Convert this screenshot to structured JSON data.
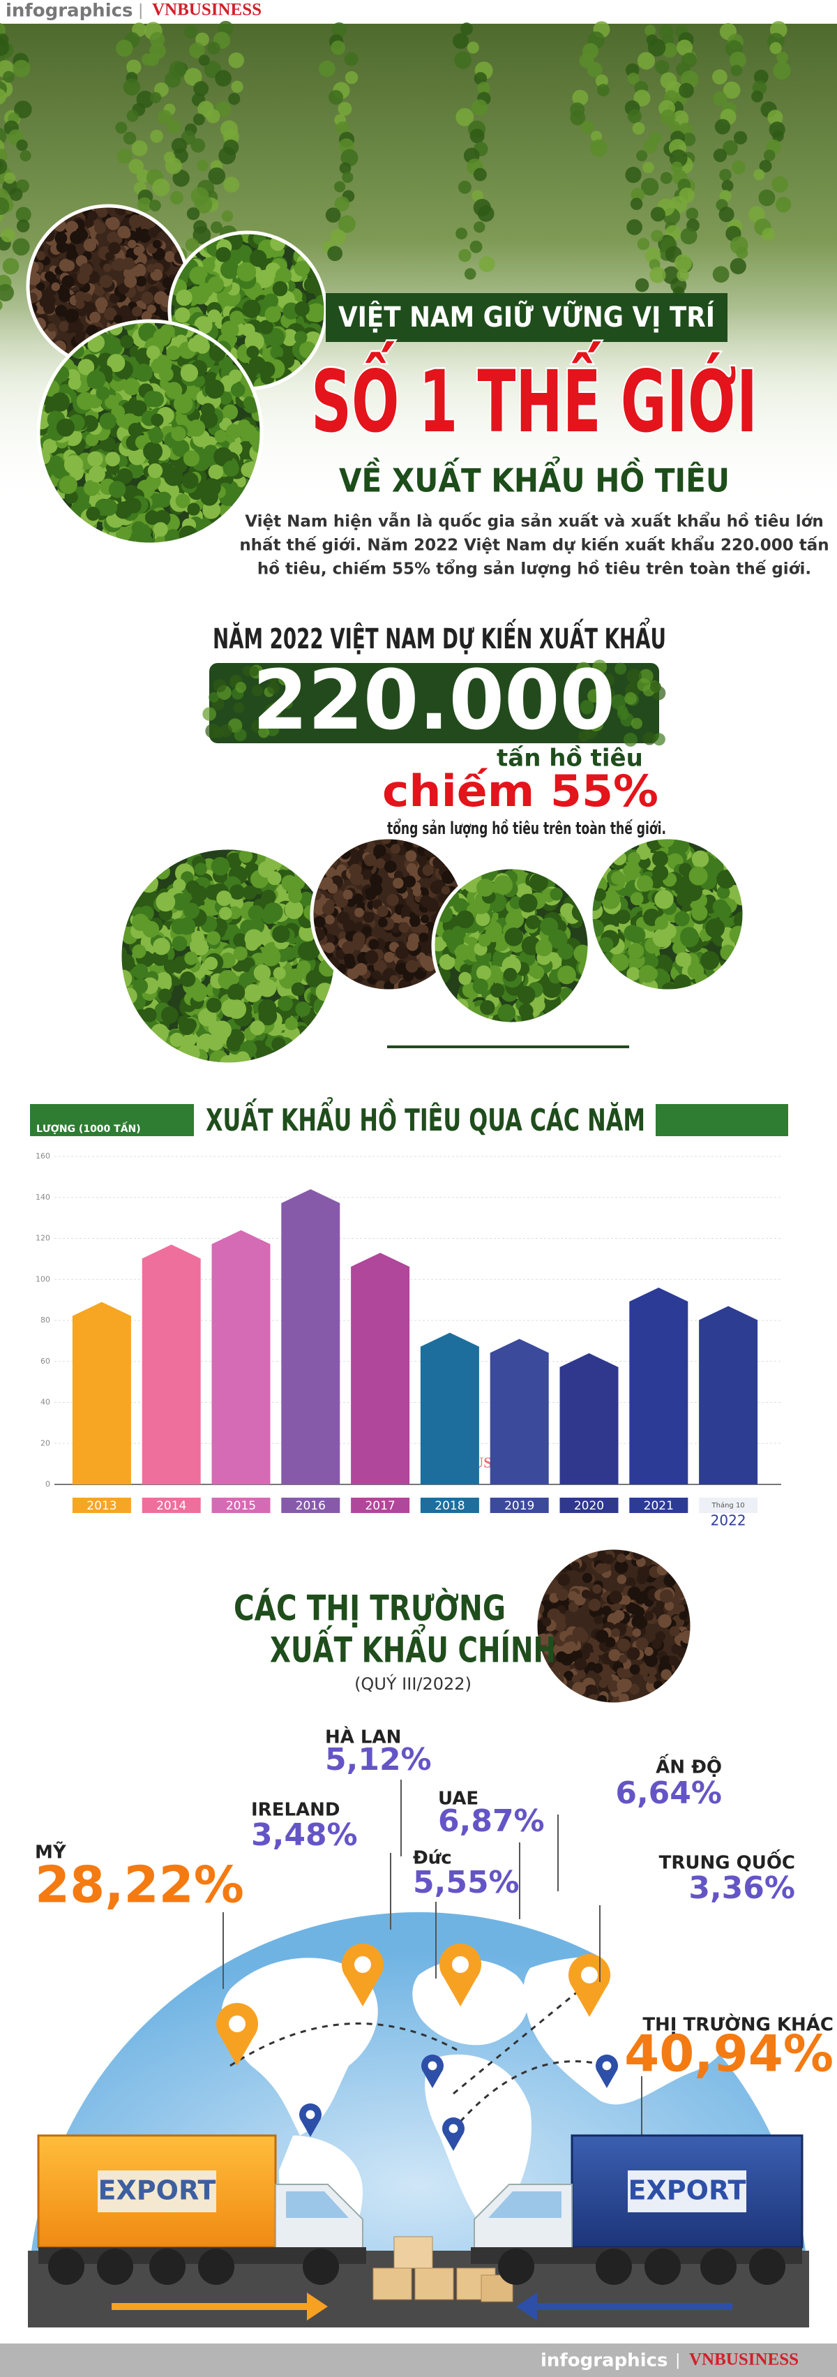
{
  "header": {
    "brand": "infographics",
    "separator": "|",
    "publisher": "VNBUSINESS"
  },
  "hero": {
    "line1": "VIỆT NAM GIỮ VỮNG VỊ TRÍ",
    "line2": "SỐ 1 THẾ GIỚI",
    "line3": "VỀ XUẤT KHẨU HỒ TIÊU",
    "intro": [
      "Việt Nam hiện vẫn là quốc gia sản xuất và xuất khẩu hồ tiêu lớn",
      "nhất thế giới. Năm 2022 Việt Nam dự kiến xuất khẩu 220.000 tấn",
      "hồ tiêu, chiếm 55% tổng sản lượng hồ tiêu trên toàn thế giới."
    ]
  },
  "highlight": {
    "lead": "NĂM 2022 VIỆT NAM DỰ KIẾN XUẤT KHẨU",
    "amount": "220.000",
    "unit": "tấn hồ tiêu",
    "share": "chiếm 55%",
    "note": "tổng sản lượng hồ tiêu trên toàn thế giới."
  },
  "chart_data": {
    "type": "bar",
    "title": "XUẤT KHẨU HỒ TIÊU QUA CÁC NĂM",
    "y_label": "LƯỢNG (1000 TẤN)",
    "watermark": "VNBUSINESS",
    "categories": [
      "2013",
      "2014",
      "2015",
      "2016",
      "2017",
      "2018",
      "2019",
      "2020",
      "2021",
      "2022"
    ],
    "last_category_note": "Tháng 10",
    "values": [
      89,
      117,
      124,
      144,
      113,
      74,
      71,
      64,
      96,
      87
    ],
    "colors": [
      "#f6a623",
      "#ee6f9c",
      "#d46bb4",
      "#875aa9",
      "#b0479a",
      "#1d6e9c",
      "#3b4a9b",
      "#2f388d",
      "#2c3b96",
      "#2d3d92"
    ],
    "ylim": [
      0,
      160
    ],
    "yticks": [
      0,
      20,
      40,
      60,
      80,
      100,
      120,
      140,
      160
    ],
    "grid": true
  },
  "markets": {
    "title1": "CÁC THỊ TRƯỜNG",
    "title2": "XUẤT KHẨU CHÍNH",
    "period": "(QUÝ III/2022)",
    "items": [
      {
        "name": "MỸ",
        "share": "28,22%"
      },
      {
        "name": "IRELAND",
        "share": "3,48%"
      },
      {
        "name": "HÀ LAN",
        "share": "5,12%"
      },
      {
        "name": "UAE",
        "share": "6,87%"
      },
      {
        "name": "Đức",
        "share": "5,55%"
      },
      {
        "name": "ẤN ĐỘ",
        "share": "6,64%"
      },
      {
        "name": "TRUNG QUỐC",
        "share": "3,36%"
      },
      {
        "name": "THỊ TRƯỜNG KHÁC",
        "share": "40,94%"
      }
    ]
  },
  "trucks": {
    "left": "EXPORT",
    "right": "EXPORT"
  },
  "footer": {
    "brand": "infographics",
    "separator": "|",
    "publisher": "VNBUSINESS"
  }
}
